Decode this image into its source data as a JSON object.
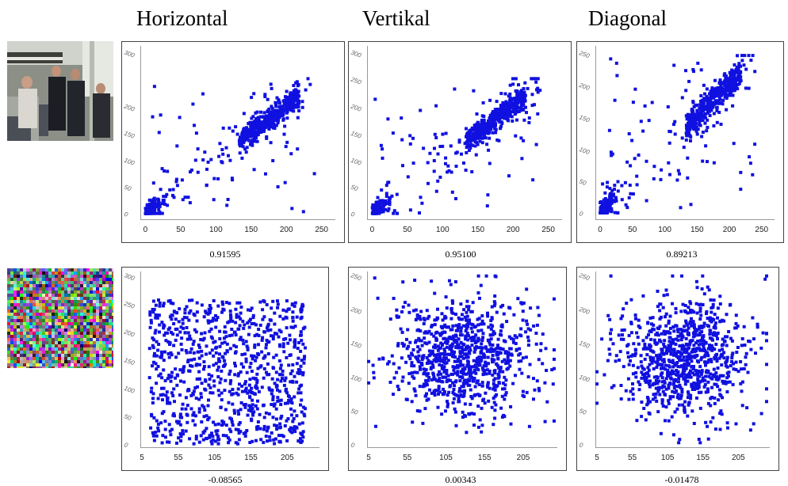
{
  "column_titles": [
    "Horizontal",
    "Vertikal",
    "Diagonal"
  ],
  "thumbnails": [
    {
      "name": "original-photo",
      "description_icon": "photo-icon"
    },
    {
      "name": "encrypted-noise-image",
      "description_icon": "noise-image-icon"
    }
  ],
  "colors": {
    "points": "#1010e0",
    "frame": "#444444",
    "tick_text": "#222222"
  },
  "chart_data": [
    {
      "type": "scatter",
      "panel": "row1-horizontal",
      "coefficient": "0.91595",
      "xticks": [
        "0",
        "50",
        "100",
        "150",
        "200",
        "250"
      ],
      "yticks": [
        "0",
        "50",
        "100",
        "150",
        "200",
        "300"
      ],
      "xlim": [
        -5,
        265
      ],
      "ylim": [
        -5,
        305
      ],
      "distribution": "correlated",
      "n": 700
    },
    {
      "type": "scatter",
      "panel": "row1-vertikal",
      "coefficient": "0.95100",
      "xticks": [
        "0",
        "50",
        "100",
        "150",
        "200",
        "250"
      ],
      "yticks": [
        "0",
        "50",
        "100",
        "150",
        "200",
        "250",
        "300"
      ],
      "xlim": [
        -5,
        265
      ],
      "ylim": [
        -5,
        305
      ],
      "distribution": "correlated",
      "n": 700
    },
    {
      "type": "scatter",
      "panel": "row1-diagonal",
      "coefficient": "0.89213",
      "xticks": [
        "0",
        "50",
        "100",
        "150",
        "200",
        "250"
      ],
      "yticks": [
        "0",
        "50",
        "100",
        "150",
        "200",
        "250"
      ],
      "xlim": [
        -5,
        265
      ],
      "ylim": [
        -5,
        255
      ],
      "distribution": "correlated",
      "n": 700
    },
    {
      "type": "scatter",
      "panel": "row2-horizontal",
      "coefficient": "-0.08565",
      "xticks": [
        "5",
        "55",
        "105",
        "155",
        "205"
      ],
      "yticks": [
        "0",
        "50",
        "100",
        "150",
        "200",
        "250",
        "300"
      ],
      "xlim": [
        5,
        245
      ],
      "ylim": [
        0,
        300
      ],
      "distribution": "uniform-y",
      "n": 900
    },
    {
      "type": "scatter",
      "panel": "row2-vertikal",
      "coefficient": "0.00343",
      "xticks": [
        "5",
        "55",
        "105",
        "155",
        "205"
      ],
      "yticks": [
        "0",
        "50",
        "100",
        "150",
        "200",
        "250"
      ],
      "xlim": [
        5,
        245
      ],
      "ylim": [
        0,
        250
      ],
      "distribution": "cluster",
      "n": 900
    },
    {
      "type": "scatter",
      "panel": "row2-diagonal",
      "coefficient": "-0.01478",
      "xticks": [
        "5",
        "55",
        "105",
        "155",
        "205"
      ],
      "yticks": [
        "0",
        "50",
        "100",
        "150",
        "200",
        "250"
      ],
      "xlim": [
        5,
        245
      ],
      "ylim": [
        0,
        250
      ],
      "distribution": "cluster",
      "n": 900
    }
  ]
}
